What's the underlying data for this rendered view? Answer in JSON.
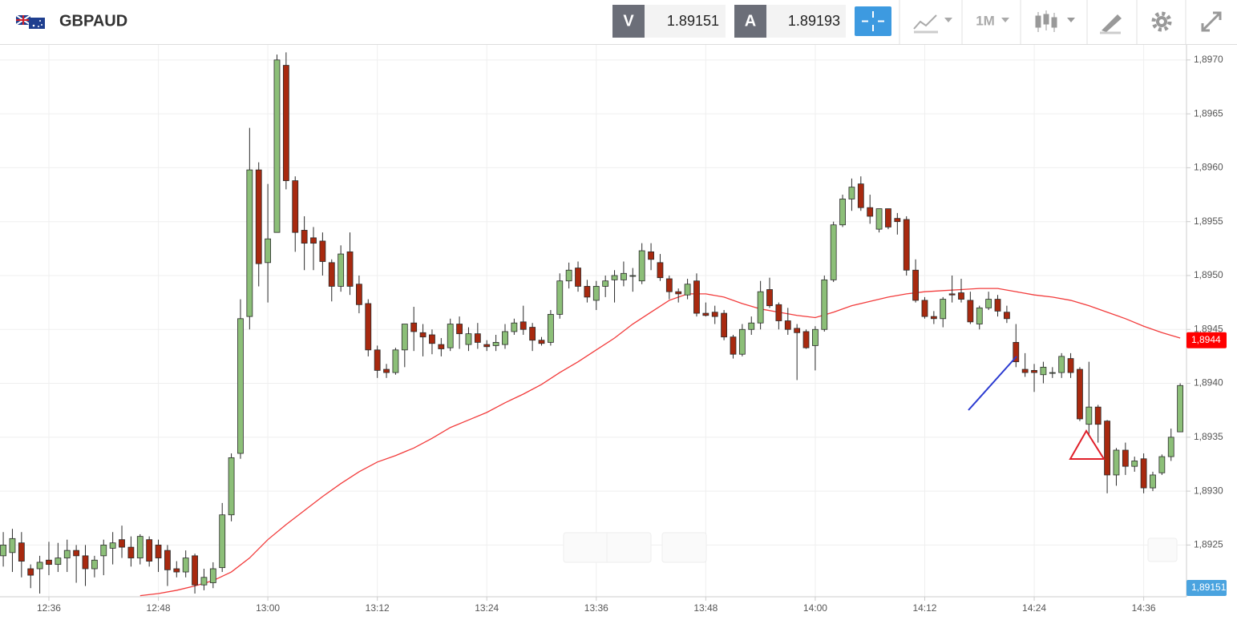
{
  "chart_data": {
    "type": "candlestick",
    "title": "GBPAUD",
    "quotes": [
      {
        "label": "V",
        "value": 1.89151
      },
      {
        "label": "A",
        "value": 1.89193
      }
    ],
    "timeframe": "1M",
    "x": [
      "12:31",
      "12:32",
      "12:33",
      "12:34",
      "12:35",
      "12:36",
      "12:37",
      "12:38",
      "12:39",
      "12:40",
      "12:41",
      "12:42",
      "12:43",
      "12:44",
      "12:45",
      "12:46",
      "12:47",
      "12:48",
      "12:49",
      "12:50",
      "12:51",
      "12:52",
      "12:53",
      "12:54",
      "12:55",
      "12:56",
      "12:57",
      "12:58",
      "12:59",
      "13:00",
      "13:01",
      "13:02",
      "13:03",
      "13:04",
      "13:05",
      "13:06",
      "13:07",
      "13:08",
      "13:09",
      "13:10",
      "13:11",
      "13:12",
      "13:13",
      "13:14",
      "13:15",
      "13:16",
      "13:17",
      "13:18",
      "13:19",
      "13:20",
      "13:21",
      "13:22",
      "13:23",
      "13:24",
      "13:25",
      "13:26",
      "13:27",
      "13:28",
      "13:29",
      "13:30",
      "13:31",
      "13:32",
      "13:33",
      "13:34",
      "13:35",
      "13:36",
      "13:37",
      "13:38",
      "13:39",
      "13:40",
      "13:41",
      "13:42",
      "13:43",
      "13:44",
      "13:45",
      "13:46",
      "13:47",
      "13:48",
      "13:49",
      "13:50",
      "13:51",
      "13:52",
      "13:53",
      "13:54",
      "13:55",
      "13:56",
      "13:57",
      "13:58",
      "13:59",
      "14:00",
      "14:01",
      "14:02",
      "14:03",
      "14:04",
      "14:05",
      "14:06",
      "14:07",
      "14:08",
      "14:09",
      "14:10",
      "14:11",
      "14:12",
      "14:13",
      "14:14",
      "14:15",
      "14:16",
      "14:17",
      "14:18",
      "14:19",
      "14:20",
      "14:21",
      "14:22",
      "14:23",
      "14:24",
      "14:25",
      "14:26",
      "14:27",
      "14:28",
      "14:29",
      "14:30",
      "14:31",
      "14:32",
      "14:33",
      "14:34",
      "14:35",
      "14:36",
      "14:37",
      "14:38",
      "14:39",
      "14:40"
    ],
    "open": [
      1.8924,
      1.89243,
      1.89252,
      1.89228,
      1.89228,
      1.89236,
      1.89232,
      1.89238,
      1.89245,
      1.8924,
      1.89228,
      1.8924,
      1.89247,
      1.89255,
      1.89248,
      1.89238,
      1.89255,
      1.8925,
      1.89245,
      1.89228,
      1.89225,
      1.8924,
      1.89213,
      1.89215,
      1.89229,
      1.89278,
      1.89335,
      1.89462,
      1.89598,
      1.89512,
      1.8954,
      1.89695,
      1.89588,
      1.89542,
      1.89535,
      1.89532,
      1.89512,
      1.8949,
      1.89522,
      1.89492,
      1.89474,
      1.89431,
      1.89413,
      1.8941,
      1.89431,
      1.89456,
      1.89447,
      1.89445,
      1.89436,
      1.89433,
      1.89455,
      1.89436,
      1.89446,
      1.89436,
      1.89435,
      1.89436,
      1.89448,
      1.89457,
      1.89452,
      1.8944,
      1.89438,
      1.89464,
      1.89495,
      1.89507,
      1.8949,
      1.89477,
      1.8949,
      1.89496,
      1.89496,
      1.895,
      1.89495,
      1.89522,
      1.89512,
      1.89497,
      1.89485,
      1.89482,
      1.89495,
      1.89465,
      1.89466,
      1.89465,
      1.89443,
      1.89427,
      1.8945,
      1.89456,
      1.89487,
      1.89473,
      1.89458,
      1.89451,
      1.89448,
      1.89435,
      1.8945,
      1.89496,
      1.89547,
      1.89571,
      1.89585,
      1.89563,
      1.89543,
      1.89562,
      1.89553,
      1.89552,
      1.89505,
      1.89477,
      1.89462,
      1.8946,
      1.89483,
      1.89484,
      1.89477,
      1.89455,
      1.8947,
      1.89478,
      1.89466,
      1.89438,
      1.89413,
      1.89412,
      1.89408,
      1.8941,
      1.8941,
      1.89423,
      1.89413,
      1.89362,
      1.89378,
      1.89365,
      1.89315,
      1.89338,
      1.89323,
      1.8933,
      1.89303,
      1.89317,
      1.89332,
      1.89355
    ],
    "high": [
      1.89262,
      1.89265,
      1.89262,
      1.89232,
      1.8924,
      1.89253,
      1.89252,
      1.89255,
      1.8925,
      1.8925,
      1.8924,
      1.89255,
      1.89262,
      1.89268,
      1.89258,
      1.8926,
      1.89258,
      1.89255,
      1.8925,
      1.89235,
      1.89245,
      1.89242,
      1.89228,
      1.89234,
      1.89289,
      1.89335,
      1.89478,
      1.89637,
      1.89605,
      1.89585,
      1.89705,
      1.89707,
      1.89592,
      1.89555,
      1.89545,
      1.8954,
      1.89515,
      1.89528,
      1.8954,
      1.895,
      1.89478,
      1.89435,
      1.89418,
      1.89433,
      1.89455,
      1.89471,
      1.89455,
      1.8945,
      1.89442,
      1.8946,
      1.89462,
      1.89452,
      1.89456,
      1.8944,
      1.89445,
      1.89455,
      1.8946,
      1.89472,
      1.89456,
      1.89443,
      1.89468,
      1.89502,
      1.89512,
      1.89513,
      1.89496,
      1.89495,
      1.895,
      1.89505,
      1.89513,
      1.89507,
      1.8953,
      1.8953,
      1.8952,
      1.895,
      1.89488,
      1.89497,
      1.89502,
      1.89475,
      1.89472,
      1.89468,
      1.89445,
      1.89455,
      1.89462,
      1.89495,
      1.89498,
      1.89475,
      1.8947,
      1.89455,
      1.8945,
      1.89453,
      1.895,
      1.8955,
      1.89575,
      1.8959,
      1.89592,
      1.89575,
      1.89562,
      1.89562,
      1.89558,
      1.89555,
      1.89515,
      1.8948,
      1.89467,
      1.8948,
      1.895,
      1.89497,
      1.89485,
      1.89472,
      1.89485,
      1.89482,
      1.89472,
      1.89455,
      1.89428,
      1.89418,
      1.8942,
      1.89415,
      1.89428,
      1.89428,
      1.89415,
      1.8942,
      1.8938,
      1.89366,
      1.8934,
      1.89345,
      1.89332,
      1.89335,
      1.89318,
      1.89334,
      1.89358,
      1.894
    ],
    "low": [
      1.8923,
      1.89225,
      1.8922,
      1.8921,
      1.89205,
      1.89222,
      1.89225,
      1.89225,
      1.89215,
      1.89212,
      1.8922,
      1.89222,
      1.89232,
      1.89238,
      1.8923,
      1.89232,
      1.8923,
      1.89225,
      1.89212,
      1.8922,
      1.8922,
      1.89205,
      1.89208,
      1.8921,
      1.89225,
      1.89272,
      1.8933,
      1.8945,
      1.8949,
      1.89475,
      1.8954,
      1.8958,
      1.89522,
      1.89505,
      1.89505,
      1.895,
      1.89476,
      1.89485,
      1.89482,
      1.89465,
      1.89425,
      1.89405,
      1.89405,
      1.89408,
      1.89415,
      1.8943,
      1.89425,
      1.89427,
      1.89425,
      1.8943,
      1.89432,
      1.8943,
      1.89432,
      1.8943,
      1.8943,
      1.89432,
      1.89445,
      1.89445,
      1.8943,
      1.89435,
      1.89435,
      1.8946,
      1.89488,
      1.89485,
      1.89475,
      1.89468,
      1.8948,
      1.89475,
      1.8949,
      1.89485,
      1.89492,
      1.89505,
      1.89495,
      1.89478,
      1.89475,
      1.89478,
      1.89462,
      1.89462,
      1.89455,
      1.8944,
      1.89423,
      1.89425,
      1.89445,
      1.8945,
      1.8947,
      1.8945,
      1.89445,
      1.89403,
      1.89432,
      1.89412,
      1.89448,
      1.89494,
      1.89545,
      1.8956,
      1.8956,
      1.89548,
      1.8954,
      1.89543,
      1.89538,
      1.895,
      1.89475,
      1.8946,
      1.89455,
      1.89452,
      1.89475,
      1.89475,
      1.89455,
      1.8945,
      1.89468,
      1.89462,
      1.89456,
      1.89415,
      1.89406,
      1.89392,
      1.894,
      1.89405,
      1.89405,
      1.89405,
      1.89365,
      1.89352,
      1.89345,
      1.89298,
      1.89305,
      1.89315,
      1.89318,
      1.89298,
      1.893,
      1.89315,
      1.89328,
      1.89355
    ],
    "close": [
      1.8925,
      1.89256,
      1.89235,
      1.89222,
      1.89234,
      1.89232,
      1.89238,
      1.89245,
      1.8924,
      1.89228,
      1.89236,
      1.8925,
      1.89252,
      1.89248,
      1.89238,
      1.89258,
      1.89235,
      1.89238,
      1.89227,
      1.89225,
      1.89238,
      1.89213,
      1.8922,
      1.89228,
      1.89278,
      1.89331,
      1.8946,
      1.89598,
      1.89511,
      1.89534,
      1.897,
      1.89588,
      1.8954,
      1.8953,
      1.8953,
      1.89513,
      1.8949,
      1.8952,
      1.8949,
      1.89473,
      1.89431,
      1.89412,
      1.8941,
      1.89431,
      1.89455,
      1.89448,
      1.89443,
      1.89437,
      1.89432,
      1.89455,
      1.89446,
      1.89446,
      1.89438,
      1.89434,
      1.89438,
      1.89448,
      1.89456,
      1.8945,
      1.8944,
      1.89437,
      1.89464,
      1.89495,
      1.89505,
      1.8949,
      1.8948,
      1.8949,
      1.89495,
      1.895,
      1.89502,
      1.895,
      1.89523,
      1.89515,
      1.89498,
      1.89485,
      1.89483,
      1.89492,
      1.89465,
      1.89463,
      1.89462,
      1.89443,
      1.89427,
      1.8945,
      1.89456,
      1.89485,
      1.89472,
      1.89458,
      1.8945,
      1.89447,
      1.89433,
      1.8945,
      1.89496,
      1.89547,
      1.89571,
      1.89582,
      1.89563,
      1.89555,
      1.89562,
      1.89545,
      1.8955,
      1.89505,
      1.89477,
      1.89462,
      1.8946,
      1.89478,
      1.89482,
      1.89478,
      1.89457,
      1.8947,
      1.89478,
      1.89467,
      1.8946,
      1.8942,
      1.8941,
      1.8941,
      1.89415,
      1.8941,
      1.89425,
      1.8941,
      1.89367,
      1.89378,
      1.89362,
      1.89315,
      1.89338,
      1.89323,
      1.89328,
      1.89303,
      1.89315,
      1.89332,
      1.8935,
      1.89398
    ],
    "up_color": "#8cbf78",
    "down_color": "#a8290f",
    "overlay_line": {
      "color": "#f23b3b",
      "x": [
        "12:46",
        "12:48",
        "12:50",
        "12:52",
        "12:54",
        "12:56",
        "12:58",
        "13:00",
        "13:02",
        "13:04",
        "13:06",
        "13:08",
        "13:10",
        "13:12",
        "13:14",
        "13:16",
        "13:18",
        "13:20",
        "13:22",
        "13:24",
        "13:26",
        "13:28",
        "13:30",
        "13:32",
        "13:34",
        "13:36",
        "13:38",
        "13:40",
        "13:42",
        "13:44",
        "13:46",
        "13:48",
        "13:50",
        "13:52",
        "13:54",
        "13:56",
        "13:58",
        "14:00",
        "14:02",
        "14:04",
        "14:06",
        "14:08",
        "14:10",
        "14:12",
        "14:14",
        "14:16",
        "14:18",
        "14:20",
        "14:22",
        "14:24",
        "14:26",
        "14:28",
        "14:30",
        "14:32",
        "14:34",
        "14:36",
        "14:38",
        "14:40"
      ],
      "values": [
        1.89203,
        1.89205,
        1.89208,
        1.89212,
        1.89217,
        1.89225,
        1.89238,
        1.89255,
        1.89269,
        1.89282,
        1.89295,
        1.89307,
        1.89318,
        1.89327,
        1.89333,
        1.8934,
        1.89349,
        1.89359,
        1.89366,
        1.89373,
        1.89382,
        1.8939,
        1.89399,
        1.8941,
        1.8942,
        1.89431,
        1.89442,
        1.89455,
        1.89466,
        1.89477,
        1.89483,
        1.89483,
        1.8948,
        1.89474,
        1.89469,
        1.89466,
        1.89463,
        1.89461,
        1.89466,
        1.89472,
        1.89476,
        1.8948,
        1.89483,
        1.89485,
        1.89486,
        1.89487,
        1.89488,
        1.89488,
        1.89485,
        1.89482,
        1.8948,
        1.89477,
        1.89472,
        1.89466,
        1.8946,
        1.89453,
        1.89447,
        1.89442
      ]
    },
    "price_markers": [
      {
        "value": 1.8944,
        "label": "1,8944",
        "color": "#ff0000"
      },
      {
        "value": 1.89151,
        "label": "1,89151",
        "color": "#4aa3df"
      }
    ],
    "xlim": [
      "12:30",
      "14:41"
    ],
    "xticks": [
      "12:36",
      "12:48",
      "13:00",
      "13:12",
      "13:24",
      "13:36",
      "13:48",
      "14:00",
      "14:12",
      "14:24",
      "14:36"
    ],
    "ylim": [
      1.89202,
      1.89714
    ],
    "yticks": [
      {
        "value": 1.8925,
        "label": "1,8925"
      },
      {
        "value": 1.893,
        "label": "1,8930"
      },
      {
        "value": 1.8935,
        "label": "1,8935"
      },
      {
        "value": 1.894,
        "label": "1,8940"
      },
      {
        "value": 1.8945,
        "label": "1,8945"
      },
      {
        "value": 1.895,
        "label": "1,8950"
      },
      {
        "value": 1.8955,
        "label": "1,8955"
      },
      {
        "value": 1.896,
        "label": "1,8960"
      },
      {
        "value": 1.8965,
        "label": "1,8965"
      },
      {
        "value": 1.897,
        "label": "1,8970"
      }
    ],
    "grid": true
  }
}
